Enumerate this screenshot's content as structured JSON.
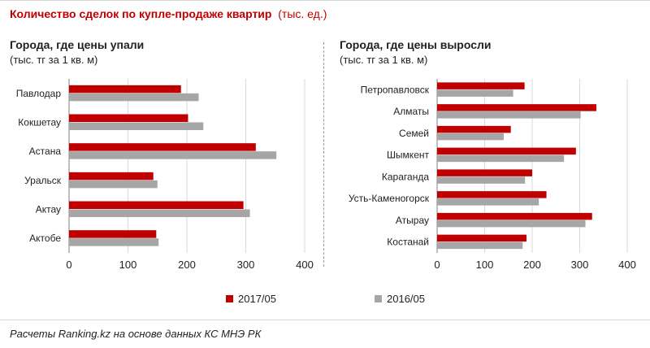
{
  "title": {
    "main": "Количество  сделок по купле-продаже квартир",
    "unit": "(тыс. ед.)"
  },
  "colors": {
    "series_2017": "#c00000",
    "series_2016": "#a6a6a6",
    "title": "#c00000"
  },
  "chart_data": [
    {
      "type": "bar",
      "orientation": "horizontal",
      "title": "Города, где цены упали",
      "subtitle": "(тыс. тг за 1 кв. м)",
      "categories": [
        "Павлодар",
        "Кокшетау",
        "Астана",
        "Уральск",
        "Актау",
        "Актобе"
      ],
      "series": [
        {
          "name": "2017/05",
          "values": [
            190,
            202,
            317,
            143,
            296,
            148
          ]
        },
        {
          "name": "2016/05",
          "values": [
            220,
            228,
            352,
            150,
            307,
            152
          ]
        }
      ],
      "xlim": [
        0,
        400
      ],
      "xticks": [
        "0",
        "100",
        "200",
        "300",
        "400"
      ],
      "grid": true
    },
    {
      "type": "bar",
      "orientation": "horizontal",
      "title": "Города, где цены выросли",
      "subtitle": "(тыс. тг за 1 кв. м)",
      "categories": [
        "Петропавловск",
        "Алматы",
        "Семей",
        "Шымкент",
        "Караганда",
        "Усть-Каменогорск",
        "Атырау",
        "Костанай"
      ],
      "series": [
        {
          "name": "2017/05",
          "values": [
            184,
            335,
            155,
            292,
            200,
            230,
            326,
            188
          ]
        },
        {
          "name": "2016/05",
          "values": [
            160,
            302,
            140,
            267,
            185,
            214,
            312,
            180
          ]
        }
      ],
      "xlim": [
        0,
        400
      ],
      "xticks": [
        "0",
        "100",
        "200",
        "300",
        "400"
      ],
      "grid": true
    }
  ],
  "legend": [
    {
      "label": "2017/05"
    },
    {
      "label": "2016/05"
    }
  ],
  "source": "Расчеты Ranking.kz на основе данных КС МНЭ РК"
}
